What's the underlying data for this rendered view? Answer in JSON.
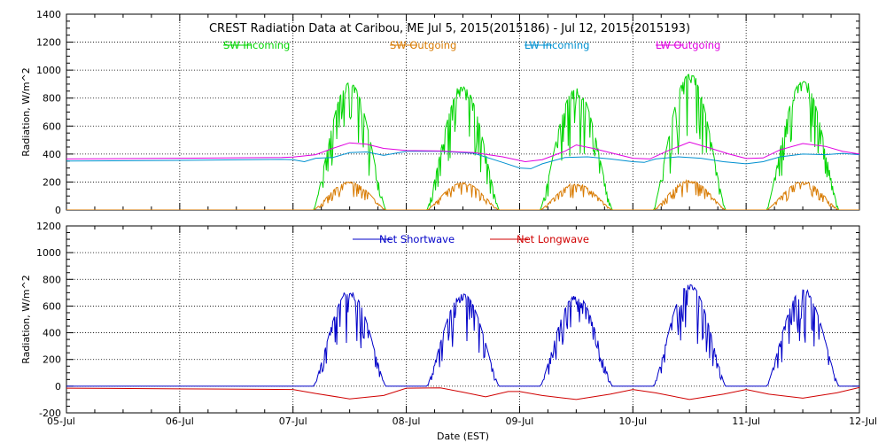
{
  "chart_data": [
    {
      "type": "line",
      "title": "CREST Radiation Data at Caribou, ME   Jul  5, 2015(2015186) - Jul 12, 2015(2015193)",
      "xlabel": "",
      "ylabel": "Radiation, W/m^2",
      "ylim": [
        0,
        1400
      ],
      "yticks": [
        0,
        200,
        400,
        600,
        800,
        1000,
        1200,
        1400
      ],
      "xlim": [
        "2015-07-05",
        "2015-07-12"
      ],
      "xticks": [
        "05-Jul",
        "06-Jul",
        "07-Jul",
        "08-Jul",
        "09-Jul",
        "10-Jul",
        "11-Jul",
        "12-Jul"
      ],
      "grid": true,
      "legend_position": "top-center",
      "series": [
        {
          "name": "SW Incoming",
          "color": "#00d400",
          "day_peaks": [
            {
              "day": 2,
              "peak": 910
            },
            {
              "day": 3,
              "peak": 880
            },
            {
              "day": 4,
              "peak": 870
            },
            {
              "day": 5,
              "peak": 970
            },
            {
              "day": 6,
              "peak": 920
            }
          ]
        },
        {
          "name": "SW Outgoing",
          "color": "#d87a00",
          "day_peaks": [
            {
              "day": 2,
              "peak": 200
            },
            {
              "day": 3,
              "peak": 195
            },
            {
              "day": 4,
              "peak": 185
            },
            {
              "day": 5,
              "peak": 210
            },
            {
              "day": 6,
              "peak": 200
            }
          ]
        },
        {
          "name": "LW Incoming",
          "color": "#0090d0",
          "points": [
            [
              0,
              350
            ],
            [
              1,
              355
            ],
            [
              1.9,
              362
            ],
            [
              2.0,
              360
            ],
            [
              2.1,
              345
            ],
            [
              2.2,
              370
            ],
            [
              2.35,
              375
            ],
            [
              2.5,
              410
            ],
            [
              2.65,
              415
            ],
            [
              2.8,
              390
            ],
            [
              3.0,
              420
            ],
            [
              3.3,
              420
            ],
            [
              3.6,
              405
            ],
            [
              3.85,
              340
            ],
            [
              4.0,
              300
            ],
            [
              4.1,
              295
            ],
            [
              4.2,
              330
            ],
            [
              4.4,
              375
            ],
            [
              4.6,
              380
            ],
            [
              4.8,
              365
            ],
            [
              5.0,
              345
            ],
            [
              5.1,
              340
            ],
            [
              5.2,
              365
            ],
            [
              5.4,
              380
            ],
            [
              5.6,
              370
            ],
            [
              5.8,
              345
            ],
            [
              6.0,
              330
            ],
            [
              6.15,
              345
            ],
            [
              6.3,
              380
            ],
            [
              6.5,
              400
            ],
            [
              6.7,
              395
            ],
            [
              6.85,
              405
            ],
            [
              7.0,
              395
            ]
          ]
        },
        {
          "name": "LW Outgoing",
          "color": "#e000e0",
          "points": [
            [
              0,
              365
            ],
            [
              1,
              370
            ],
            [
              1.9,
              375
            ],
            [
              2.0,
              378
            ],
            [
              2.2,
              395
            ],
            [
              2.35,
              440
            ],
            [
              2.5,
              480
            ],
            [
              2.65,
              470
            ],
            [
              2.8,
              440
            ],
            [
              3.0,
              425
            ],
            [
              3.3,
              422
            ],
            [
              3.6,
              410
            ],
            [
              3.85,
              380
            ],
            [
              4.05,
              345
            ],
            [
              4.2,
              360
            ],
            [
              4.4,
              420
            ],
            [
              4.5,
              465
            ],
            [
              4.65,
              440
            ],
            [
              4.85,
              400
            ],
            [
              5.0,
              370
            ],
            [
              5.15,
              365
            ],
            [
              5.3,
              420
            ],
            [
              5.5,
              485
            ],
            [
              5.65,
              450
            ],
            [
              5.85,
              400
            ],
            [
              6.0,
              368
            ],
            [
              6.15,
              372
            ],
            [
              6.3,
              430
            ],
            [
              6.5,
              475
            ],
            [
              6.7,
              455
            ],
            [
              6.85,
              420
            ],
            [
              7.0,
              400
            ]
          ]
        }
      ]
    },
    {
      "type": "line",
      "title": "",
      "xlabel": "Date (EST)",
      "ylabel": "Radiation, W/m^2",
      "ylim": [
        -200,
        1200
      ],
      "yticks": [
        -200,
        0,
        200,
        400,
        600,
        800,
        1000,
        1200
      ],
      "xlim": [
        "2015-07-05",
        "2015-07-12"
      ],
      "xticks": [
        "05-Jul",
        "06-Jul",
        "07-Jul",
        "08-Jul",
        "09-Jul",
        "10-Jul",
        "11-Jul",
        "12-Jul"
      ],
      "grid": true,
      "legend_position": "top-center",
      "series": [
        {
          "name": "Net Shortwave",
          "color": "#0000c8",
          "day_peaks": [
            {
              "day": 2,
              "peak": 710
            },
            {
              "day": 3,
              "peak": 690
            },
            {
              "day": 4,
              "peak": 680
            },
            {
              "day": 5,
              "peak": 760
            },
            {
              "day": 6,
              "peak": 720
            }
          ]
        },
        {
          "name": "Net Longwave",
          "color": "#d00000",
          "points": [
            [
              0,
              -15
            ],
            [
              1,
              -20
            ],
            [
              2.0,
              -25
            ],
            [
              2.2,
              -55
            ],
            [
              2.5,
              -95
            ],
            [
              2.8,
              -70
            ],
            [
              3.0,
              -15
            ],
            [
              3.3,
              -12
            ],
            [
              3.5,
              -45
            ],
            [
              3.7,
              -80
            ],
            [
              3.9,
              -40
            ],
            [
              4.0,
              -40
            ],
            [
              4.2,
              -70
            ],
            [
              4.5,
              -100
            ],
            [
              4.8,
              -60
            ],
            [
              5.0,
              -25
            ],
            [
              5.2,
              -50
            ],
            [
              5.5,
              -100
            ],
            [
              5.8,
              -60
            ],
            [
              6.0,
              -25
            ],
            [
              6.2,
              -60
            ],
            [
              6.5,
              -90
            ],
            [
              6.8,
              -50
            ],
            [
              7.0,
              -10
            ]
          ]
        }
      ]
    }
  ]
}
